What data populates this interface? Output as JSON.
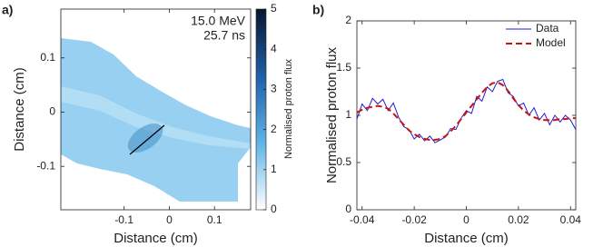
{
  "chart_data": [
    {
      "type": "image",
      "panel_label": "a)",
      "xlabel": "Distance (cm)",
      "ylabel": "Distance (cm)",
      "xlim": [
        -0.24,
        0.18
      ],
      "ylim": [
        -0.18,
        0.19
      ],
      "xticks": [
        -0.1,
        0,
        0.1
      ],
      "yticks": [
        -0.1,
        0,
        0.1
      ],
      "annotations": [
        "15.0 MeV",
        "25.7 ns"
      ],
      "colorbar": {
        "label": "Normalised proton flux",
        "lim": [
          0,
          5
        ],
        "ticks": [
          0,
          1,
          2,
          3,
          4,
          5
        ],
        "colors": [
          "#ffffff",
          "#5fb4e6",
          "#1f5fa8",
          "#08152e"
        ]
      }
    },
    {
      "type": "line",
      "panel_label": "b)",
      "xlabel": "Distance (cm)",
      "ylabel": "Normalised proton flux",
      "xlim": [
        -0.042,
        0.042
      ],
      "ylim": [
        0,
        2
      ],
      "xticks": [
        -0.04,
        -0.02,
        0,
        0.02,
        0.04
      ],
      "yticks": [
        0,
        0.5,
        1,
        1.5,
        2
      ],
      "legend": "upper right",
      "x": [
        -0.042,
        -0.04,
        -0.038,
        -0.036,
        -0.034,
        -0.032,
        -0.03,
        -0.028,
        -0.026,
        -0.024,
        -0.022,
        -0.02,
        -0.018,
        -0.016,
        -0.014,
        -0.012,
        -0.01,
        -0.008,
        -0.006,
        -0.004,
        -0.002,
        0,
        0.002,
        0.004,
        0.006,
        0.008,
        0.01,
        0.012,
        0.014,
        0.016,
        0.018,
        0.02,
        0.022,
        0.024,
        0.026,
        0.028,
        0.03,
        0.032,
        0.034,
        0.036,
        0.038,
        0.04,
        0.042
      ],
      "series": [
        {
          "name": "Data",
          "color": "#1f1fd0",
          "dash": false,
          "values": [
            0.96,
            1.12,
            1.05,
            1.18,
            1.12,
            1.17,
            1.05,
            1.13,
            0.98,
            0.88,
            0.85,
            0.75,
            0.8,
            0.73,
            0.78,
            0.71,
            0.74,
            0.77,
            0.86,
            0.85,
            0.97,
            1.05,
            1.02,
            1.2,
            1.15,
            1.3,
            1.25,
            1.36,
            1.38,
            1.24,
            1.2,
            1.1,
            1.13,
            1.0,
            1.08,
            0.95,
            1.02,
            0.9,
            1.0,
            0.93,
            1.0,
            0.95,
            0.85
          ]
        },
        {
          "name": "Model",
          "color": "#cc1111",
          "dash": true,
          "values": [
            1.03,
            1.06,
            1.08,
            1.09,
            1.1,
            1.09,
            1.07,
            1.02,
            0.96,
            0.9,
            0.84,
            0.8,
            0.77,
            0.75,
            0.74,
            0.74,
            0.75,
            0.78,
            0.83,
            0.89,
            0.96,
            1.03,
            1.1,
            1.17,
            1.24,
            1.3,
            1.34,
            1.35,
            1.32,
            1.26,
            1.18,
            1.11,
            1.05,
            1.01,
            0.98,
            0.96,
            0.95,
            0.95,
            0.95,
            0.96,
            0.96,
            0.97,
            0.97
          ]
        }
      ]
    }
  ]
}
